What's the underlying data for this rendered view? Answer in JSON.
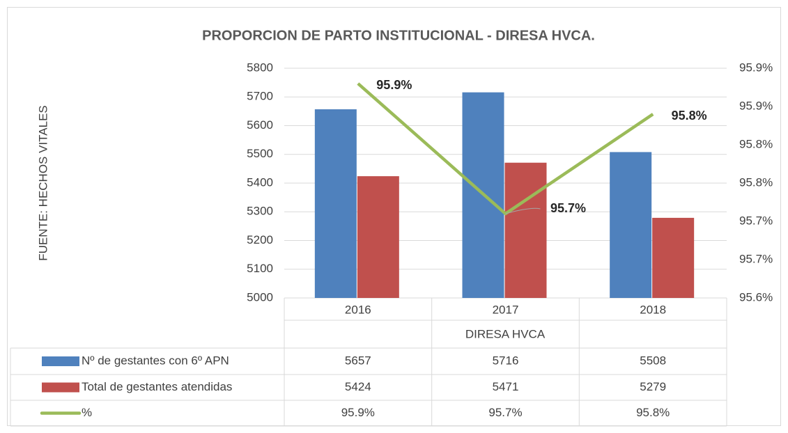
{
  "chart_data": {
    "type": "bar",
    "title": "PROPORCION DE PARTO INSTITUCIONAL - DIRESA HVCA.",
    "y_label": "FUENTE: HECHOS VITALES",
    "x_group_label": "DIRESA HVCA",
    "categories": [
      "2016",
      "2017",
      "2018"
    ],
    "series": [
      {
        "name": "Nº de gestantes con 6º APN",
        "color": "#4f81bd",
        "values": [
          5657,
          5716,
          5508
        ]
      },
      {
        "name": "Total de gestantes atendidas",
        "color": "#c0504d",
        "values": [
          5424,
          5471,
          5279
        ]
      },
      {
        "name": "%",
        "color": "#9bbb59",
        "type": "line",
        "axis": "y2",
        "values": [
          95.88,
          95.71,
          95.84
        ],
        "value_labels": [
          "95.9%",
          "95.7%",
          "95.8%"
        ]
      }
    ],
    "ylim": [
      5000,
      5800
    ],
    "yticks": [
      5000,
      5100,
      5200,
      5300,
      5400,
      5500,
      5600,
      5700,
      5800
    ],
    "y2lim": [
      95.6,
      95.9
    ],
    "y2ticks": [
      {
        "value": 95.6,
        "label": "95.6%"
      },
      {
        "value": 95.65,
        "label": "95.7%"
      },
      {
        "value": 95.7,
        "label": "95.7%"
      },
      {
        "value": 95.75,
        "label": "95.8%"
      },
      {
        "value": 95.8,
        "label": "95.8%"
      },
      {
        "value": 95.85,
        "label": "95.9%"
      },
      {
        "value": 95.9,
        "label": "95.9%"
      }
    ],
    "grid": true
  }
}
